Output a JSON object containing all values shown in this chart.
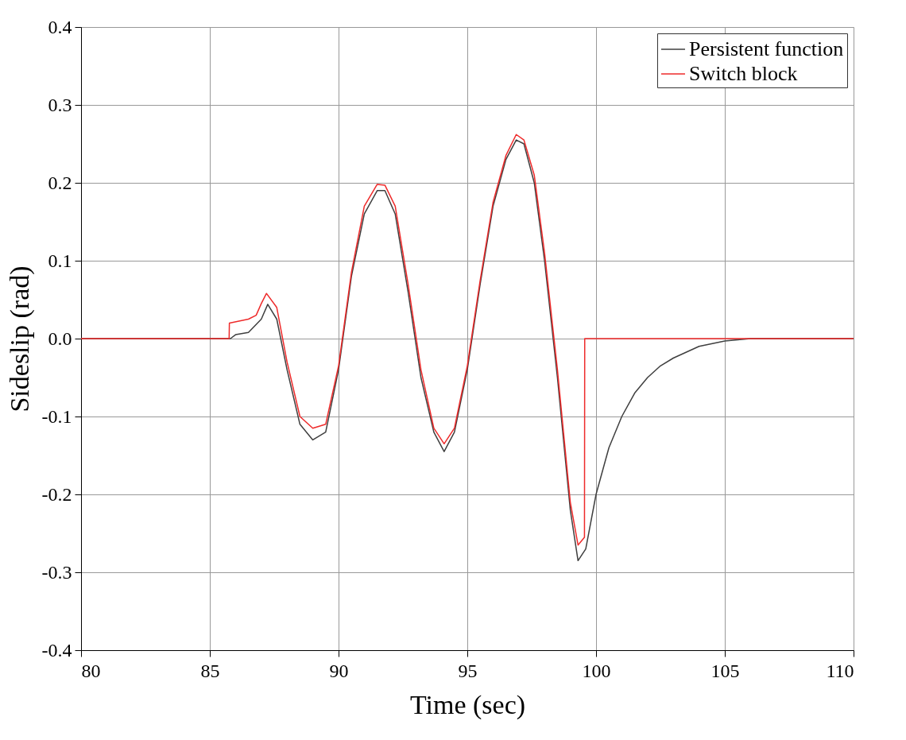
{
  "chart_data": {
    "type": "line",
    "xlabel": "Time (sec)",
    "ylabel": "Sideslip (rad)",
    "xlim": [
      80,
      110
    ],
    "xticks": [
      80,
      85,
      90,
      95,
      100,
      105,
      110
    ],
    "ylim": [
      -0.4,
      0.4
    ],
    "yticks": [
      {
        "value": -0.4,
        "label": "-0.4"
      },
      {
        "value": -0.3,
        "label": "-0.3"
      },
      {
        "value": -0.2,
        "label": "-0.2"
      },
      {
        "value": -0.1,
        "label": "-0.1"
      },
      {
        "value": 0,
        "label": "0.0"
      },
      {
        "value": 0.1,
        "label": "0.1"
      },
      {
        "value": 0.2,
        "label": "0.2"
      },
      {
        "value": 0.3,
        "label": "0.3"
      },
      {
        "value": 0.4,
        "label": "0.4"
      }
    ],
    "grid": true,
    "legend": "top right",
    "marker": "none",
    "line_style": "solid",
    "series": [
      {
        "name": "Persistent function",
        "color": "#3f3f3f",
        "x": [
          80,
          85.8,
          86,
          86.5,
          87,
          87.25,
          87.6,
          88,
          88.5,
          89,
          89.5,
          90,
          90.5,
          91,
          91.5,
          91.8,
          92.2,
          92.7,
          93.2,
          93.7,
          94.1,
          94.5,
          95,
          95.5,
          96,
          96.5,
          96.9,
          97.2,
          97.6,
          98,
          98.5,
          99,
          99.3,
          99.6,
          100,
          100.5,
          101,
          101.5,
          102,
          102.5,
          103,
          104,
          105,
          106,
          110
        ],
        "values": [
          0,
          0,
          0.005,
          0.008,
          0.025,
          0.044,
          0.025,
          -0.04,
          -0.11,
          -0.13,
          -0.12,
          -0.04,
          0.08,
          0.16,
          0.19,
          0.19,
          0.16,
          0.06,
          -0.05,
          -0.12,
          -0.145,
          -0.12,
          -0.04,
          0.07,
          0.17,
          0.23,
          0.255,
          0.25,
          0.2,
          0.1,
          -0.05,
          -0.22,
          -0.285,
          -0.27,
          -0.2,
          -0.14,
          -0.1,
          -0.07,
          -0.05,
          -0.035,
          -0.025,
          -0.01,
          -0.003,
          0,
          0
        ]
      },
      {
        "name": "Switch block",
        "color": "#ee2a2a",
        "x": [
          80,
          85.75,
          85.76,
          86.5,
          86.8,
          87,
          87.2,
          87.6,
          88,
          88.5,
          89,
          89.5,
          90,
          90.5,
          91,
          91.5,
          91.8,
          92.2,
          92.7,
          93.2,
          93.7,
          94.1,
          94.5,
          95,
          95.5,
          96,
          96.5,
          96.9,
          97.2,
          97.6,
          98,
          98.5,
          99,
          99.3,
          99.55,
          99.56,
          110
        ],
        "values": [
          0,
          0,
          0.02,
          0.025,
          0.03,
          0.045,
          0.058,
          0.04,
          -0.03,
          -0.1,
          -0.115,
          -0.11,
          -0.035,
          0.085,
          0.17,
          0.198,
          0.197,
          0.17,
          0.07,
          -0.04,
          -0.115,
          -0.135,
          -0.115,
          -0.035,
          0.075,
          0.175,
          0.235,
          0.262,
          0.255,
          0.21,
          0.11,
          -0.04,
          -0.21,
          -0.265,
          -0.255,
          0,
          0
        ]
      }
    ]
  }
}
